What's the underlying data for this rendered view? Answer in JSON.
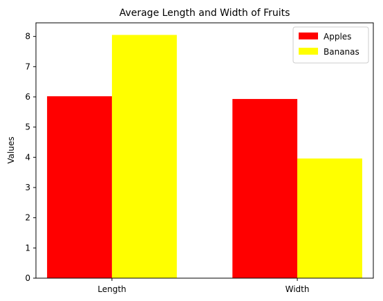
{
  "chart_data": {
    "type": "bar",
    "title": "Average Length and Width of Fruits",
    "xlabel": "",
    "ylabel": "Values",
    "categories": [
      "Length",
      "Width"
    ],
    "series": [
      {
        "name": "Apples",
        "values": [
          6.02,
          5.93
        ],
        "color": "#ff0000"
      },
      {
        "name": "Bananas",
        "values": [
          8.05,
          3.96
        ],
        "color": "#ffff00"
      }
    ],
    "ylim": [
      0,
      8.45
    ],
    "yticks": [
      0,
      1,
      2,
      3,
      4,
      5,
      6,
      7,
      8
    ],
    "grid": false,
    "legend_position": "top-right"
  }
}
